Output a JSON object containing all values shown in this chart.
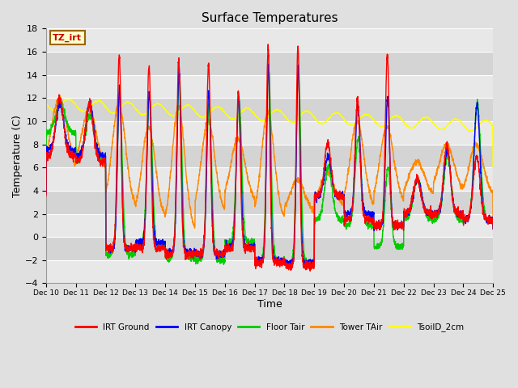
{
  "title": "Surface Temperatures",
  "xlabel": "Time",
  "ylabel": "Temperature (C)",
  "ylim": [
    -4,
    18
  ],
  "yticks": [
    -4,
    -2,
    0,
    2,
    4,
    6,
    8,
    10,
    12,
    14,
    16,
    18
  ],
  "xtick_labels": [
    "Dec 10",
    "Dec 11",
    "Dec 12",
    "Dec 13",
    "Dec 14",
    "Dec 15",
    "Dec 16",
    "Dec 17",
    "Dec 18",
    "Dec 19",
    "Dec 20",
    "Dec 21",
    "Dec 22",
    "Dec 23",
    "Dec 24",
    "Dec 25"
  ],
  "annotation_text": "TZ_irt",
  "annotation_color": "#cc0000",
  "annotation_bg": "#ffffcc",
  "annotation_border": "#996600",
  "legend_entries": [
    "IRT Ground",
    "IRT Canopy",
    "Floor Tair",
    "Tower TAir",
    "TsoilD_2cm"
  ],
  "colors": {
    "IRT Ground": "#ff0000",
    "IRT Canopy": "#0000ff",
    "Floor Tair": "#00cc00",
    "Tower TAir": "#ff8800",
    "TsoilD_2cm": "#ffff00"
  },
  "bg_color": "#e0e0e0",
  "plot_bg_light": "#d8d8d8",
  "plot_bg_dark": "#c8c8c8",
  "grid_color": "#ffffff",
  "title_fontsize": 11,
  "tick_fontsize": 7,
  "label_fontsize": 9
}
